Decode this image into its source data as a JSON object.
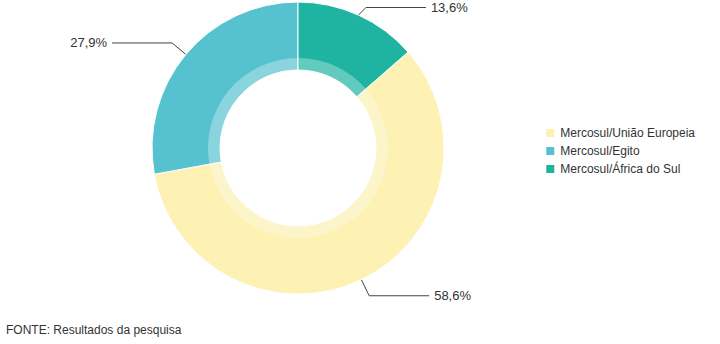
{
  "chart_data": {
    "type": "pie",
    "categories": [
      "Mercosul/União Europeia",
      "Mercosul/Egito",
      "Mercosul/África do Sul"
    ],
    "values": [
      58.6,
      27.9,
      13.6
    ],
    "value_labels": [
      "58,6%",
      "27,9%",
      "13,6%"
    ],
    "colors": [
      "#fdf1b4",
      "#56c2cf",
      "#1fb3a2"
    ],
    "legend": "right",
    "data_labels": true,
    "source": "FONTE: Resultados da pesquisa"
  }
}
